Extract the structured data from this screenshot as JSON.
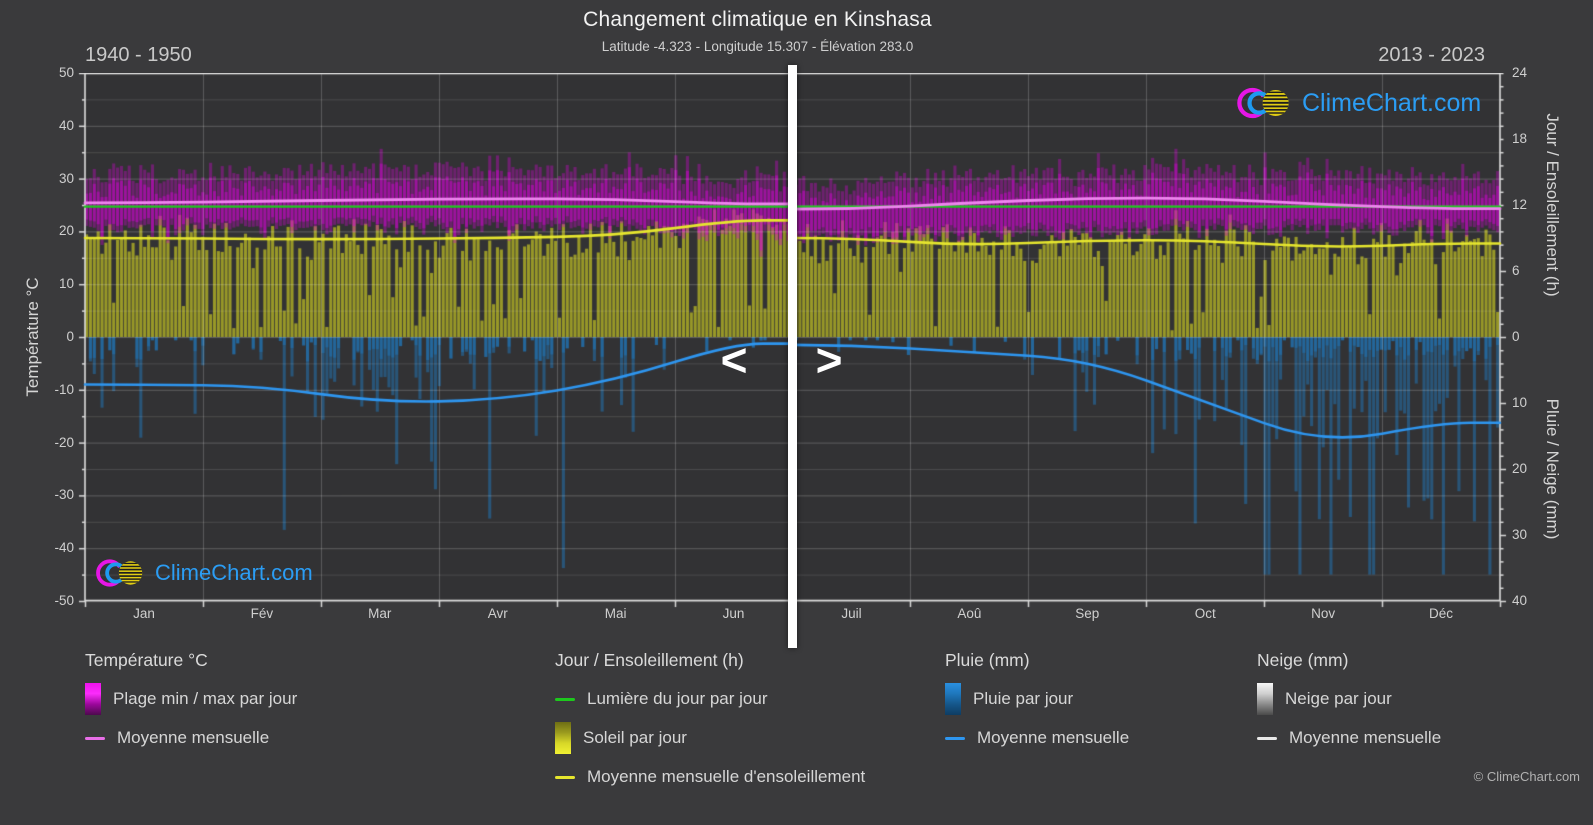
{
  "header": {
    "title": "Changement climatique en Kinshasa",
    "subtitle": "Latitude -4.323 - Longitude 15.307 - Élévation 283.0",
    "period_left": "1940 - 1950",
    "period_right": "2013 - 2023"
  },
  "branding": {
    "logo_text": "ClimeChart.com",
    "logo_text_color": "#2b9df4",
    "copyright": "© ClimeChart.com"
  },
  "nav": {
    "prev_label": "<",
    "next_label": ">"
  },
  "axes": {
    "left": {
      "label": "Température °C",
      "ticks": [
        "50",
        "40",
        "30",
        "20",
        "10",
        "0",
        "-10",
        "-20",
        "-30",
        "-40",
        "-50"
      ],
      "range": [
        -50,
        50
      ]
    },
    "right_sun": {
      "label": "Jour / Ensoleillement (h)",
      "ticks": [
        "24",
        "18",
        "12",
        "6",
        "0"
      ],
      "range": [
        0,
        24
      ]
    },
    "right_precip": {
      "label": "Pluie / Neige (mm)",
      "ticks": [
        "10",
        "20",
        "30",
        "40"
      ],
      "range": [
        0,
        40
      ]
    },
    "x": {
      "months": [
        "Jan",
        "Fév",
        "Mar",
        "Avr",
        "Mai",
        "Jun",
        "Juil",
        "Aoû",
        "Sep",
        "Oct",
        "Nov",
        "Déc"
      ]
    }
  },
  "legend": {
    "groups": [
      {
        "title": "Température °C",
        "items": [
          {
            "swatch": "bar",
            "colors": [
              "#ee12ee",
              "#fb2cfb",
              "#9b079b",
              "#4d094d"
            ],
            "label": "Plage min / max par jour"
          },
          {
            "swatch": "line",
            "color": "#e86ee8",
            "label": "Moyenne mensuelle"
          }
        ]
      },
      {
        "title": "Jour / Ensoleillement (h)",
        "items": [
          {
            "swatch": "line",
            "color": "#1dc81d",
            "label": "Lumière du jour par jour"
          },
          {
            "swatch": "bar",
            "colors": [
              "#6e6e14",
              "#9b9b1e",
              "#d8d828",
              "#f0f032"
            ],
            "label": "Soleil par jour"
          },
          {
            "swatch": "line",
            "color": "#e6e62e",
            "label": "Moyenne mensuelle d'ensoleillement"
          }
        ]
      },
      {
        "title": "Pluie (mm)",
        "items": [
          {
            "swatch": "bar",
            "colors": [
              "#2a8fe0",
              "#1f77bc",
              "#15568a",
              "#0e3c62"
            ],
            "label": "Pluie par jour"
          },
          {
            "swatch": "line",
            "color": "#2e96f0",
            "label": "Moyenne mensuelle"
          }
        ]
      },
      {
        "title": "Neige (mm)",
        "items": [
          {
            "swatch": "bar",
            "colors": [
              "#f7f7f7",
              "#cfcfcf",
              "#8a8a8a",
              "#4a4a4a"
            ],
            "label": "Neige par jour"
          },
          {
            "swatch": "line",
            "color": "#e8e8e8",
            "label": "Moyenne mensuelle"
          }
        ]
      }
    ]
  },
  "chart_data": {
    "type": "climate-composite",
    "months": [
      "Jan",
      "Fév",
      "Mar",
      "Avr",
      "Mai",
      "Jun",
      "Juil",
      "Aoû",
      "Sep",
      "Oct",
      "Nov",
      "Déc"
    ],
    "split_index": 6,
    "split_periods": {
      "left": "1940 - 1950",
      "right": "2013 - 2023"
    },
    "temp_ylim": [
      -50,
      50
    ],
    "sun_ylim": [
      0,
      24
    ],
    "precip_ylim": [
      0,
      40
    ],
    "grid": true,
    "legend_position": "bottom",
    "series": [
      {
        "name": "temp_mean_monthly_c",
        "values": [
          25.4,
          25.7,
          26.0,
          26.2,
          26.1,
          25.2,
          24.2,
          25.4,
          26.3,
          26.3,
          25.1,
          24.3
        ]
      },
      {
        "name": "temp_max_daily_avg_c",
        "values": [
          30.8,
          31.2,
          31.6,
          31.8,
          31.3,
          29.6,
          28.9,
          30.2,
          31.3,
          31.3,
          30.9,
          30.4
        ]
      },
      {
        "name": "temp_min_daily_avg_c",
        "values": [
          21.5,
          21.5,
          21.8,
          21.9,
          21.8,
          20.2,
          19.6,
          20.1,
          20.9,
          21.3,
          21.4,
          21.2
        ]
      },
      {
        "name": "daylight_h",
        "values": [
          11.85,
          11.85,
          11.85,
          11.85,
          11.85,
          11.85,
          11.85,
          11.85,
          11.85,
          11.85,
          11.85,
          11.85
        ]
      },
      {
        "name": "sunshine_mean_monthly_h",
        "values": [
          9.0,
          8.9,
          8.9,
          9.0,
          9.2,
          10.6,
          9.0,
          8.3,
          8.8,
          8.8,
          8.1,
          8.5
        ]
      },
      {
        "name": "rain_mean_monthly_mm_day",
        "values": [
          7.2,
          7.4,
          9.9,
          9.6,
          6.6,
          1.0,
          1.2,
          2.3,
          3.4,
          9.8,
          16.3,
          13.0
        ]
      },
      {
        "name": "snow_mean_monthly_mm_day",
        "values": [
          0,
          0,
          0,
          0,
          0,
          0,
          0,
          0,
          0,
          0,
          0,
          0
        ]
      }
    ],
    "colors": {
      "temp_bar": "#cd05cd",
      "temp_mean_line": "#ef86ef",
      "daylight_line": "#1dc81d",
      "sun_bar": "#c8c824",
      "sun_mean_line": "#e6e62e",
      "rain_bar": "#2078bc",
      "rain_mean_line": "#2e96f0",
      "snow_bar": "#e8e8e8",
      "snow_mean_line": "#e8e8e8",
      "grid": "#ffffff",
      "plot_bg": "#323234",
      "frame": "#dcdcdc"
    }
  }
}
